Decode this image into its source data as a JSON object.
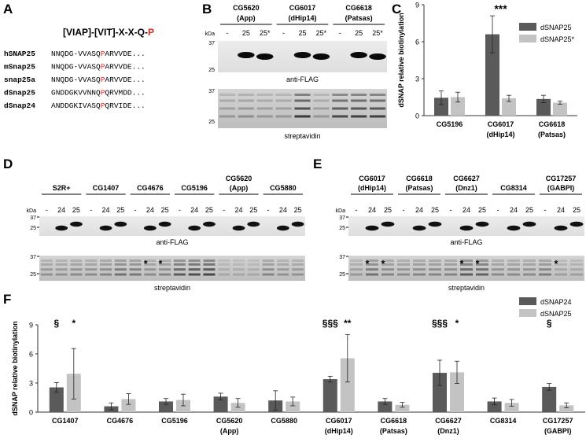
{
  "panel_A": {
    "label": "A",
    "motif_prefix": "[VIAP]-[VIT]-X-X-Q-",
    "motif_suffix": "P",
    "rows": [
      {
        "name": "hSNAP25",
        "pre": "NNQDG-VVASQ",
        "hl": "P",
        "post": "ARVVDE..."
      },
      {
        "name": "mSnap25",
        "pre": "NNQDG-VVASQ",
        "hl": "P",
        "post": "ARVVDE..."
      },
      {
        "name": "snap25a",
        "pre": "NNQDG-VVASQ",
        "hl": "P",
        "post": "ARVVDE..."
      },
      {
        "name": "dSnap25",
        "pre": "GNDDGKVVNNQ",
        "hl": "P",
        "post": "QRVMDD..."
      },
      {
        "name": "dSnap24",
        "pre": "ANDDGKIVASQ",
        "hl": "P",
        "post": "QRVIDE..."
      }
    ],
    "highlight_color": "#e0241b"
  },
  "panel_B": {
    "label": "B",
    "groups": [
      {
        "name": "CG5620",
        "sub": "(App)"
      },
      {
        "name": "CG6017",
        "sub": "(dHip14)"
      },
      {
        "name": "CG6618",
        "sub": "(Patsas)"
      }
    ],
    "lanes": [
      "-",
      "25",
      "25*",
      "-",
      "25",
      "25*",
      "-",
      "25",
      "25*"
    ],
    "kda": "kDa",
    "mw": [
      "37",
      "25",
      "37",
      "25"
    ],
    "blot1": "anti-FLAG",
    "blot2": "streptavidin"
  },
  "panel_C": {
    "label": "C"
  },
  "panel_D": {
    "label": "D",
    "groups": [
      {
        "name": "S2R+",
        "sub": ""
      },
      {
        "name": "CG1407",
        "sub": ""
      },
      {
        "name": "CG4676",
        "sub": ""
      },
      {
        "name": "CG5196",
        "sub": ""
      },
      {
        "name": "CG5620",
        "sub": "(App)"
      },
      {
        "name": "CG5880",
        "sub": ""
      }
    ],
    "lanes": [
      "-",
      "24",
      "25",
      "-",
      "24",
      "25",
      "-",
      "24",
      "25",
      "-",
      "24",
      "25",
      "-",
      "24",
      "25",
      "-",
      "24",
      "25"
    ],
    "kda": "kDa",
    "mw": [
      "37",
      "25",
      "37",
      "25"
    ],
    "blot1": "anti-FLAG",
    "blot2": "streptavidin",
    "star": "*"
  },
  "panel_E": {
    "label": "E",
    "groups": [
      {
        "name": "CG6017",
        "sub": "(dHip14)"
      },
      {
        "name": "CG6618",
        "sub": "(Patsas)"
      },
      {
        "name": "CG6627",
        "sub": "(Dnz1)"
      },
      {
        "name": "CG8314",
        "sub": ""
      },
      {
        "name": "CG17257",
        "sub": "(GABPI)"
      }
    ],
    "lanes": [
      "-",
      "24",
      "25",
      "-",
      "24",
      "25",
      "-",
      "24",
      "25",
      "-",
      "24",
      "25",
      "-",
      "24",
      "25"
    ],
    "kda": "kDa",
    "mw": [
      "37",
      "25",
      "37",
      "25"
    ],
    "blot1": "anti-FLAG",
    "blot2": "streptavidin",
    "star": "*"
  },
  "panel_F": {
    "label": "F"
  },
  "chart_data": [
    {
      "type": "bar",
      "panel": "C",
      "categories": [
        "CG5196",
        "CG6017",
        "CG6618"
      ],
      "category_sub": [
        "",
        "(dHip14)",
        "(Patsas)"
      ],
      "series": [
        {
          "name": "dSNAP25",
          "values": [
            1.45,
            6.6,
            1.35
          ],
          "errors": [
            0.55,
            1.5,
            0.3
          ],
          "color": "#5a5a5a"
        },
        {
          "name": "dSNAP25*",
          "values": [
            1.5,
            1.4,
            1.05
          ],
          "errors": [
            0.4,
            0.25,
            0.12
          ],
          "color": "#c3c3c3"
        }
      ],
      "ylabel": "dSNAP relative biotinylation",
      "ylim": [
        0,
        9
      ],
      "yticks": [
        0,
        3,
        6,
        9
      ],
      "annotations": [
        {
          "category": 1,
          "text": "***"
        }
      ],
      "legend": "top-right"
    },
    {
      "type": "bar",
      "panel": "F",
      "categories": [
        "CG1407",
        "CG4676",
        "CG5196",
        "CG5620",
        "CG5880",
        "CG6017",
        "CG6618",
        "CG6627",
        "CG8314",
        "CG17257"
      ],
      "category_sub": [
        "",
        "",
        "",
        "(App)",
        "",
        "(dHip14)",
        "(Patsas)",
        "(Dnz1)",
        "",
        "(GABPI)"
      ],
      "series": [
        {
          "name": "dSNAP24",
          "values": [
            2.55,
            0.6,
            1.1,
            1.6,
            1.2,
            3.4,
            1.1,
            4.05,
            1.1,
            2.6
          ],
          "errors": [
            0.5,
            0.35,
            0.3,
            0.35,
            1.0,
            0.3,
            0.3,
            1.3,
            0.35,
            0.35
          ],
          "color": "#5a5a5a"
        },
        {
          "name": "dSNAP25",
          "values": [
            3.95,
            1.35,
            1.25,
            0.95,
            1.1,
            5.55,
            0.75,
            4.1,
            0.95,
            0.7
          ],
          "errors": [
            2.6,
            0.55,
            0.6,
            0.45,
            0.45,
            2.45,
            0.25,
            1.15,
            0.35,
            0.25
          ],
          "color": "#c3c3c3"
        }
      ],
      "ylabel": "dSNAP relative biotinylation",
      "ylim": [
        0,
        9
      ],
      "yticks": [
        0,
        3,
        6,
        9
      ],
      "annotations": [
        {
          "category": 0,
          "text": "§",
          "series": 0
        },
        {
          "category": 0,
          "text": "*",
          "series": 1
        },
        {
          "category": 5,
          "text": "§§§",
          "series": 0
        },
        {
          "category": 5,
          "text": "**",
          "series": 1
        },
        {
          "category": 7,
          "text": "§§§",
          "series": 0
        },
        {
          "category": 7,
          "text": "*",
          "series": 1
        },
        {
          "category": 9,
          "text": "§",
          "series": 0
        }
      ],
      "legend": "top-right"
    }
  ]
}
